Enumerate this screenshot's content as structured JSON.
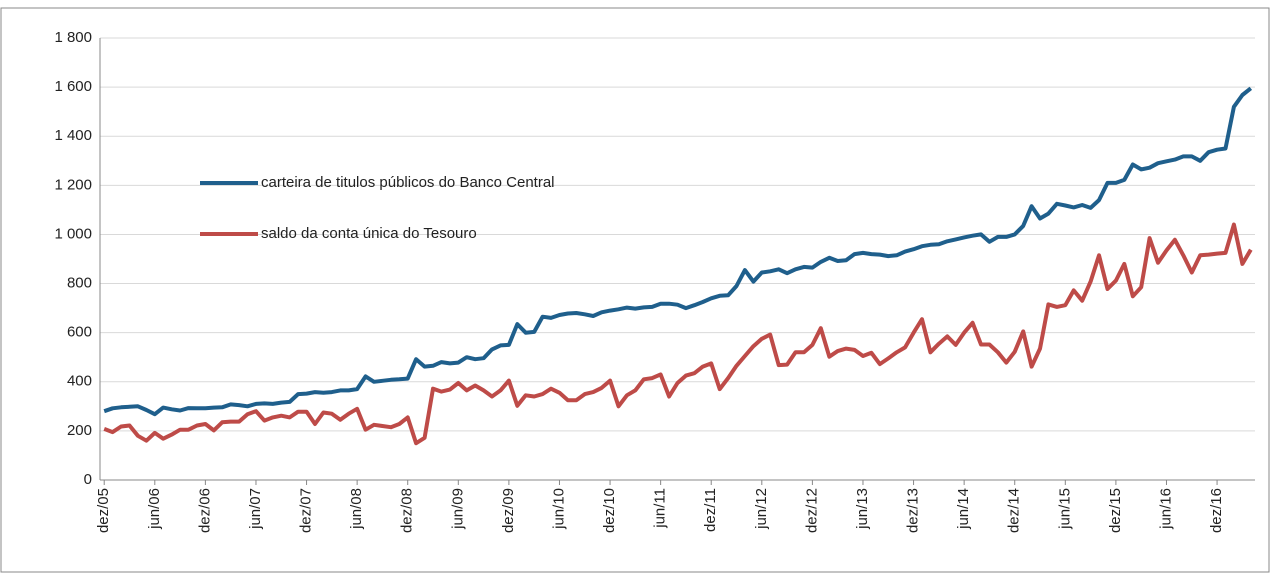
{
  "chart_data": {
    "type": "line",
    "categories": [
      "dez/05",
      null,
      null,
      null,
      null,
      null,
      "jun/06",
      null,
      null,
      null,
      null,
      null,
      "dez/06",
      null,
      null,
      null,
      null,
      null,
      "jun/07",
      null,
      null,
      null,
      null,
      null,
      "dez/07",
      null,
      null,
      null,
      null,
      null,
      "jun/08",
      null,
      null,
      null,
      null,
      null,
      "dez/08",
      null,
      null,
      null,
      null,
      null,
      "jun/09",
      null,
      null,
      null,
      null,
      null,
      "dez/09",
      null,
      null,
      null,
      null,
      null,
      "jun/10",
      null,
      null,
      null,
      null,
      null,
      "dez/10",
      null,
      null,
      null,
      null,
      null,
      "jun/11",
      null,
      null,
      null,
      null,
      null,
      "dez/11",
      null,
      null,
      null,
      null,
      null,
      "jun/12",
      null,
      null,
      null,
      null,
      null,
      "dez/12",
      null,
      null,
      null,
      null,
      null,
      "jun/13",
      null,
      null,
      null,
      null,
      null,
      "dez/13",
      null,
      null,
      null,
      null,
      null,
      "jun/14",
      null,
      null,
      null,
      null,
      null,
      "dez/14",
      null,
      null,
      null,
      null,
      null,
      "jun/15",
      null,
      null,
      null,
      null,
      null,
      "dez/15",
      null,
      null,
      null,
      null,
      null,
      "jun/16",
      null,
      null,
      null,
      null,
      null,
      "dez/16",
      null,
      null,
      null,
      null
    ],
    "series": [
      {
        "name": "carteira de titulos públicos do Banco Central",
        "color": "#1f5f8c",
        "values": [
          280,
          292,
          296,
          298,
          300,
          285,
          268,
          295,
          288,
          283,
          293,
          292,
          292,
          295,
          296,
          308,
          305,
          300,
          310,
          312,
          310,
          315,
          318,
          350,
          352,
          358,
          355,
          358,
          365,
          365,
          370,
          422,
          400,
          404,
          408,
          410,
          413,
          492,
          462,
          465,
          480,
          475,
          478,
          500,
          492,
          496,
          532,
          548,
          550,
          635,
          600,
          603,
          665,
          660,
          672,
          678,
          680,
          675,
          668,
          683,
          690,
          695,
          702,
          698,
          703,
          705,
          718,
          718,
          714,
          700,
          712,
          725,
          740,
          750,
          752,
          790,
          855,
          808,
          845,
          850,
          858,
          842,
          858,
          868,
          865,
          888,
          905,
          892,
          895,
          920,
          925,
          920,
          918,
          912,
          915,
          930,
          940,
          952,
          958,
          960,
          972,
          980,
          988,
          995,
          1000,
          970,
          990,
          990,
          1000,
          1035,
          1115,
          1065,
          1085,
          1125,
          1118,
          1110,
          1120,
          1108,
          1140,
          1210,
          1210,
          1222,
          1285,
          1265,
          1272,
          1290,
          1298,
          1305,
          1318,
          1318,
          1300,
          1335,
          1345,
          1350,
          1520,
          1568,
          1595
        ]
      },
      {
        "name": "saldo da conta única do Tesouro",
        "color": "#be4b48",
        "values": [
          208,
          195,
          218,
          222,
          180,
          160,
          192,
          168,
          185,
          205,
          205,
          222,
          228,
          202,
          235,
          238,
          238,
          268,
          280,
          242,
          255,
          262,
          255,
          278,
          278,
          228,
          275,
          270,
          245,
          270,
          290,
          205,
          225,
          220,
          215,
          228,
          255,
          150,
          172,
          372,
          360,
          368,
          395,
          365,
          385,
          365,
          340,
          365,
          405,
          302,
          345,
          340,
          350,
          372,
          355,
          325,
          325,
          350,
          358,
          375,
          405,
          300,
          345,
          365,
          410,
          415,
          430,
          340,
          395,
          425,
          435,
          462,
          475,
          370,
          415,
          465,
          505,
          545,
          575,
          592,
          468,
          470,
          520,
          520,
          550,
          618,
          502,
          525,
          535,
          530,
          505,
          518,
          472,
          495,
          520,
          540,
          600,
          655,
          520,
          555,
          585,
          550,
          600,
          640,
          552,
          552,
          520,
          478,
          522,
          605,
          462,
          535,
          715,
          705,
          712,
          772,
          730,
          808,
          915,
          778,
          812,
          880,
          748,
          785,
          985,
          885,
          935,
          978,
          915,
          845,
          915,
          918,
          922,
          925,
          1040,
          880,
          938
        ]
      }
    ],
    "ylim": [
      0,
      1800
    ],
    "yticks": [
      0,
      200,
      400,
      600,
      800,
      {
        "value": 1000,
        "label": "1 000"
      },
      {
        "value": 1200,
        "label": "1 200"
      },
      {
        "value": 1400,
        "label": "1 400"
      },
      {
        "value": 1600,
        "label": "1 600"
      },
      {
        "value": 1800,
        "label": "1 800"
      }
    ],
    "grid": true
  }
}
